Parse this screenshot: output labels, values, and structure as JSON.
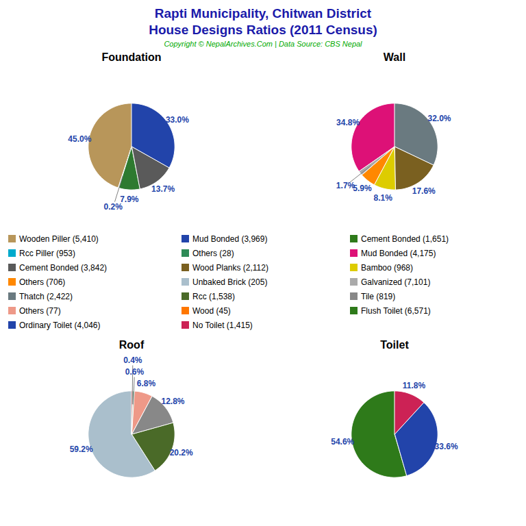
{
  "title": "Rapti Municipality, Chitwan District",
  "subtitle": "House Designs Ratios (2011 Census)",
  "caption": "Copyright © NepalArchives.Com | Data Source: CBS Nepal",
  "title_color": "#1a1aaa",
  "caption_color": "#00aa00",
  "data_label_color": "#2244aa",
  "chart_data": [
    {
      "type": "pie",
      "title": "Foundation",
      "values": [
        45.0,
        0.2,
        7.9,
        13.7,
        33.0
      ],
      "value_labels": [
        "45.0%",
        "0.2%",
        "7.9%",
        "13.7%",
        "33.0%"
      ],
      "colors": [
        "#b8965a",
        "#00aacc",
        "#2e7a30",
        "#5a5a5a",
        "#2244aa"
      ],
      "data_labels": true
    },
    {
      "type": "pie",
      "title": "Wall",
      "values": [
        34.8,
        1.7,
        5.9,
        8.1,
        17.6,
        32.0
      ],
      "value_labels": [
        "34.8%",
        "1.7%",
        "5.9%",
        "8.1%",
        "17.6%",
        "32.0%"
      ],
      "colors": [
        "#dd1177",
        "#aaaaaa",
        "#ff8800",
        "#ddcc00",
        "#7a6020",
        "#6a7a80"
      ],
      "data_labels": true
    },
    {
      "type": "pie",
      "title": "Roof",
      "values": [
        59.2,
        20.2,
        12.8,
        6.8,
        0.6,
        0.4
      ],
      "value_labels": [
        "59.2%",
        "20.2%",
        "12.8%",
        "6.8%",
        "0.6%",
        "0.4%"
      ],
      "colors": [
        "#aabfcc",
        "#4a6a28",
        "#888888",
        "#ee9988",
        "#2e8b57",
        "#cc3333"
      ],
      "data_labels": true
    },
    {
      "type": "pie",
      "title": "Toilet",
      "values": [
        54.6,
        33.6,
        11.8
      ],
      "value_labels": [
        "54.6%",
        "33.6%",
        "11.8%"
      ],
      "colors": [
        "#2e7a1a",
        "#2244aa",
        "#cc2255"
      ],
      "data_labels": true
    }
  ],
  "legend_columns": [
    [
      {
        "name": "Wooden Piller (5,410)",
        "color": "#b8965a"
      },
      {
        "name": "Rcc Piller (953)",
        "color": "#00aacc"
      },
      {
        "name": "Cement Bonded (3,842)",
        "color": "#5a5a5a"
      },
      {
        "name": "Others (706)",
        "color": "#ff8800"
      },
      {
        "name": "Thatch (2,422)",
        "color": "#6a7a80"
      },
      {
        "name": "Others (77)",
        "color": "#ee9988"
      },
      {
        "name": "Ordinary Toilet (4,046)",
        "color": "#2244aa"
      }
    ],
    [
      {
        "name": "Mud Bonded (3,969)",
        "color": "#2244aa"
      },
      {
        "name": "Others (28)",
        "color": "#2e8b57"
      },
      {
        "name": "Wood Planks (2,112)",
        "color": "#7a6020"
      },
      {
        "name": "Unbaked Brick (205)",
        "color": "#aabfcc"
      },
      {
        "name": "Rcc (1,538)",
        "color": "#4a6a28"
      },
      {
        "name": "Wood (45)",
        "color": "#ff7700"
      },
      {
        "name": "No Toilet (1,415)",
        "color": "#cc2255"
      }
    ],
    [
      {
        "name": "Cement Bonded (1,651)",
        "color": "#2e7a1a"
      },
      {
        "name": "Mud Bonded (4,175)",
        "color": "#dd1177"
      },
      {
        "name": "Bamboo (968)",
        "color": "#ddcc00"
      },
      {
        "name": "Galvanized (7,101)",
        "color": "#aaaaaa"
      },
      {
        "name": "Tile (819)",
        "color": "#888888"
      },
      {
        "name": "Flush Toilet (6,571)",
        "color": "#2e7a1a"
      }
    ]
  ]
}
